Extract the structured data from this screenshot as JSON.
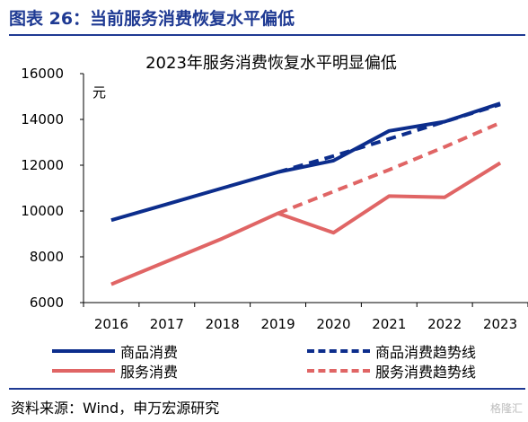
{
  "header": {
    "title": "图表 26：当前服务消费恢复水平偏低"
  },
  "chart_data": {
    "type": "line",
    "title": "2023年服务消费恢复水平明显偏低",
    "ylabel": "元",
    "categories": [
      "2016",
      "2017",
      "2018",
      "2019",
      "2020",
      "2021",
      "2022",
      "2023"
    ],
    "ylim": [
      6000,
      16000
    ],
    "yticks": [
      "6000",
      "8000",
      "10000",
      "12000",
      "14000",
      "16000"
    ],
    "grid": false,
    "legend_position": "bottom",
    "series": [
      {
        "name": "商品消费",
        "style": "solid",
        "color": "#0c2d8c",
        "x": [
          2016,
          2016.5,
          2017,
          2018,
          2019,
          2020,
          2021,
          2022,
          2023
        ],
        "values": [
          9600,
          9950,
          10300,
          11000,
          11700,
          12200,
          13500,
          13900,
          14700
        ]
      },
      {
        "name": "商品消费趋势线",
        "style": "dashed",
        "color": "#0c2d8c",
        "x": [
          2019,
          2020,
          2021,
          2022,
          2023
        ],
        "values": [
          11700,
          12400,
          13150,
          13900,
          14650
        ]
      },
      {
        "name": "服务消费",
        "style": "solid",
        "color": "#e06565",
        "x": [
          2016,
          2017,
          2018,
          2019,
          2020,
          2021,
          2022,
          2023
        ],
        "values": [
          6800,
          7800,
          8800,
          9900,
          9050,
          10650,
          10600,
          12100
        ]
      },
      {
        "name": "服务消费趋势线",
        "style": "dashed",
        "color": "#e06565",
        "x": [
          2019,
          2020,
          2021,
          2022,
          2023
        ],
        "values": [
          9900,
          10850,
          11800,
          12800,
          13850
        ]
      }
    ]
  },
  "source": "资料来源：Wind，申万宏源研究",
  "watermark": "格隆汇"
}
